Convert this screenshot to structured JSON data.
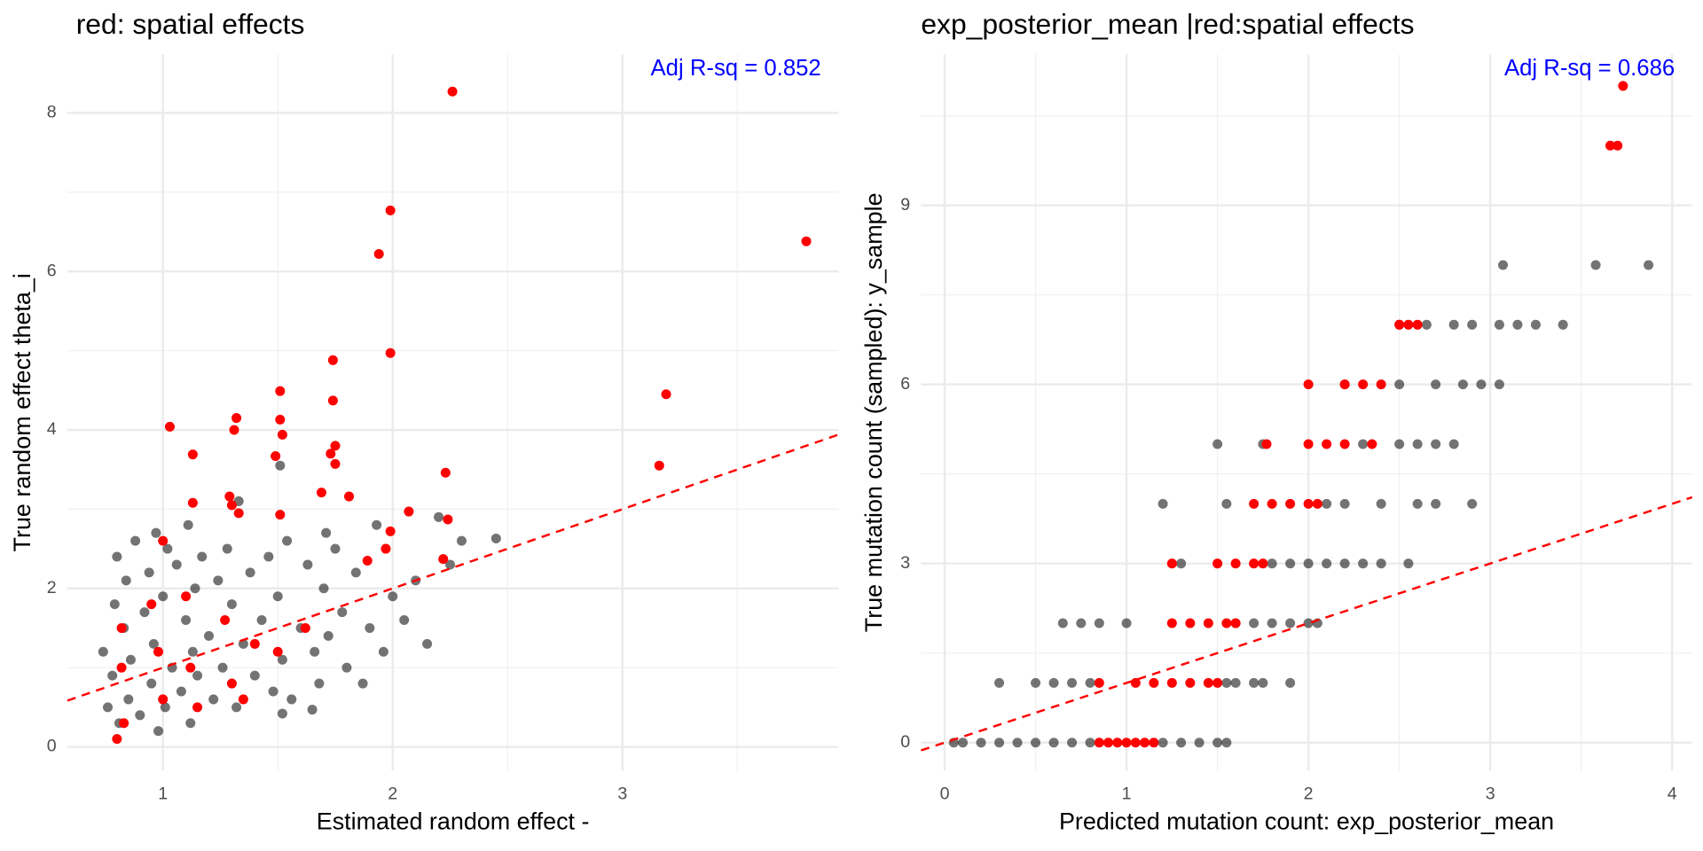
{
  "chart_data": [
    {
      "type": "scatter",
      "title": "red: spatial effects",
      "x_label": "Estimated random effect -",
      "y_label": "True random effect theta_i",
      "annotation": {
        "text": "Adj R-sq = 0.852",
        "color": "#0000ff"
      },
      "xlim": [
        0.584,
        3.94
      ],
      "ylim": [
        -0.3,
        8.74
      ],
      "xticks": [
        1,
        2,
        3
      ],
      "yticks": [
        0,
        2,
        4,
        6,
        8
      ],
      "grid": true,
      "ref_line": {
        "slope": 1,
        "intercept": 0,
        "color": "#ff0000"
      },
      "series": [
        {
          "color": "#000000",
          "opacity": 0.55,
          "x": [
            0.74,
            0.76,
            0.78,
            0.79,
            0.8,
            0.81,
            0.83,
            0.84,
            0.85,
            0.86,
            0.88,
            0.9,
            0.92,
            0.94,
            0.95,
            0.96,
            0.97,
            0.98,
            1.0,
            1.01,
            1.02,
            1.04,
            1.06,
            1.08,
            1.1,
            1.11,
            1.12,
            1.13,
            1.14,
            1.15,
            1.17,
            1.2,
            1.22,
            1.24,
            1.26,
            1.28,
            1.3,
            1.32,
            1.33,
            1.35,
            1.38,
            1.4,
            1.43,
            1.46,
            1.48,
            1.5,
            1.51,
            1.52,
            1.54,
            1.56,
            1.6,
            1.63,
            1.66,
            1.68,
            1.7,
            1.72,
            1.75,
            1.78,
            1.8,
            1.84,
            1.87,
            1.9,
            1.93,
            1.96,
            2.0,
            2.05,
            2.1,
            2.15,
            2.2,
            2.25,
            2.3,
            2.45,
            1.65,
            1.52,
            1.71
          ],
          "y": [
            1.2,
            0.5,
            0.9,
            1.8,
            2.4,
            0.3,
            1.5,
            2.1,
            0.6,
            1.1,
            2.6,
            0.4,
            1.7,
            2.2,
            0.8,
            1.3,
            2.7,
            0.2,
            1.9,
            0.5,
            2.5,
            1.0,
            2.3,
            0.7,
            1.6,
            2.8,
            0.3,
            1.2,
            2.0,
            0.9,
            2.4,
            1.4,
            0.6,
            2.1,
            1.0,
            2.5,
            1.8,
            0.5,
            3.1,
            1.3,
            2.2,
            0.9,
            1.6,
            2.4,
            0.7,
            1.9,
            3.55,
            1.1,
            2.6,
            0.6,
            1.5,
            2.3,
            1.2,
            0.8,
            2.0,
            1.4,
            2.5,
            1.7,
            1.0,
            2.2,
            0.8,
            1.5,
            2.8,
            1.2,
            1.9,
            1.6,
            2.1,
            1.3,
            2.9,
            2.3,
            2.6,
            2.63,
            0.47,
            0.42,
            2.7
          ]
        },
        {
          "color": "#ff0000",
          "opacity": 1,
          "x": [
            2.26,
            1.99,
            1.94,
            3.8,
            1.99,
            1.74,
            1.51,
            3.19,
            1.74,
            1.32,
            1.51,
            1.03,
            1.52,
            1.31,
            1.75,
            1.73,
            1.13,
            1.49,
            1.75,
            3.16,
            2.23,
            1.29,
            1.81,
            1.69,
            1.13,
            1.3,
            1.33,
            2.07,
            1.51,
            2.24,
            1.99,
            1.97,
            1.89,
            2.22,
            1.0,
            0.82,
            0.82,
            0.83,
            0.95,
            0.98,
            1.0,
            1.1,
            1.12,
            1.15,
            1.27,
            1.3,
            1.4,
            1.35,
            1.5,
            1.62,
            0.8
          ],
          "y": [
            8.27,
            6.77,
            6.22,
            6.38,
            4.97,
            4.88,
            4.49,
            4.45,
            4.37,
            4.15,
            4.13,
            4.04,
            3.94,
            4.0,
            3.8,
            3.7,
            3.69,
            3.67,
            3.57,
            3.55,
            3.46,
            3.16,
            3.16,
            3.21,
            3.08,
            3.05,
            2.95,
            2.97,
            2.93,
            2.87,
            2.72,
            2.5,
            2.35,
            2.37,
            2.6,
            1.5,
            1.0,
            0.3,
            1.8,
            1.2,
            0.6,
            1.9,
            1.0,
            0.5,
            1.6,
            0.8,
            1.3,
            0.6,
            1.2,
            1.5,
            0.1
          ]
        }
      ]
    },
    {
      "type": "scatter",
      "title": "exp_posterior_mean |red:spatial effects",
      "x_label": "Predicted mutation count: exp_posterior_mean",
      "y_label": "True mutation count (sampled): y_sample",
      "annotation": {
        "text": "Adj R-sq = 0.686",
        "color": "#0000ff"
      },
      "xlim": [
        -0.13,
        4.11
      ],
      "ylim": [
        -0.47,
        11.53
      ],
      "xticks": [
        0,
        1,
        2,
        3,
        4
      ],
      "yticks": [
        0,
        3,
        6,
        9
      ],
      "grid": true,
      "ref_line": {
        "slope": 1,
        "intercept": 0,
        "color": "#ff0000"
      },
      "series": [
        {
          "color": "#000000",
          "opacity": 0.55,
          "x": [
            0.05,
            0.1,
            0.2,
            0.3,
            0.4,
            0.5,
            0.6,
            0.7,
            0.8,
            1.2,
            1.3,
            1.4,
            1.5,
            1.55,
            0.3,
            0.5,
            0.6,
            0.7,
            0.8,
            1.55,
            1.6,
            1.7,
            1.75,
            1.9,
            0.65,
            0.75,
            0.85,
            1.0,
            1.6,
            1.7,
            1.8,
            1.9,
            2.0,
            2.05,
            1.3,
            1.8,
            1.9,
            2.0,
            2.1,
            2.2,
            2.3,
            2.4,
            2.55,
            1.2,
            1.55,
            2.1,
            2.2,
            2.4,
            2.6,
            2.7,
            2.9,
            1.5,
            1.75,
            2.3,
            2.5,
            2.6,
            2.7,
            2.8,
            2.2,
            2.5,
            2.7,
            2.85,
            2.95,
            3.05,
            2.5,
            2.65,
            2.8,
            2.9,
            3.05,
            3.15,
            3.25,
            3.4,
            3.07,
            3.58,
            3.87
          ],
          "y": [
            0,
            0,
            0,
            0,
            0,
            0,
            0,
            0,
            0,
            0,
            0,
            0,
            0,
            0,
            1,
            1,
            1,
            1,
            1,
            1,
            1,
            1,
            1,
            1,
            2,
            2,
            2,
            2,
            2,
            2,
            2,
            2,
            2,
            2,
            3,
            3,
            3,
            3,
            3,
            3,
            3,
            3,
            3,
            4,
            4,
            4,
            4,
            4,
            4,
            4,
            4,
            5,
            5,
            5,
            5,
            5,
            5,
            5,
            6,
            6,
            6,
            6,
            6,
            6,
            7,
            7,
            7,
            7,
            7,
            7,
            7,
            7,
            8,
            8,
            8
          ]
        },
        {
          "color": "#ff0000",
          "opacity": 1,
          "x": [
            0.85,
            0.9,
            0.95,
            1.0,
            1.05,
            1.1,
            1.15,
            0.85,
            1.05,
            1.15,
            1.25,
            1.35,
            1.45,
            1.5,
            1.25,
            1.35,
            1.45,
            1.55,
            1.6,
            1.25,
            1.5,
            1.6,
            1.7,
            1.75,
            1.7,
            1.8,
            1.9,
            2.0,
            2.05,
            1.77,
            2.0,
            2.1,
            2.2,
            2.35,
            2.0,
            2.2,
            2.3,
            2.4,
            2.5,
            2.55,
            2.6,
            3.66,
            3.7,
            3.73
          ],
          "y": [
            0,
            0,
            0,
            0,
            0,
            0,
            0,
            1,
            1,
            1,
            1,
            1,
            1,
            1,
            2,
            2,
            2,
            2,
            2,
            3,
            3,
            3,
            3,
            3,
            4,
            4,
            4,
            4,
            4,
            5,
            5,
            5,
            5,
            5,
            6,
            6,
            6,
            6,
            7,
            7,
            7,
            10,
            10,
            11
          ]
        }
      ]
    }
  ]
}
